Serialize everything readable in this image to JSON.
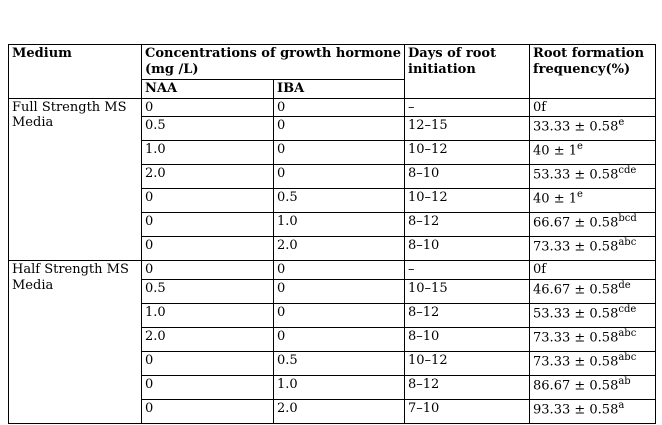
{
  "table": {
    "header": {
      "medium": "Medium",
      "concentrations": "Concentrations of growth hormone (mg /L)",
      "naa": "NAA",
      "iba": "IBA",
      "days": "Days of root initiation",
      "frequency": "Root formation frequency(%)"
    },
    "sections": [
      {
        "medium": "Full Strength MS Media",
        "rows": [
          {
            "naa": "0",
            "iba": "0",
            "days": "–",
            "freq": "0f",
            "sup": ""
          },
          {
            "naa": "0.5",
            "iba": "0",
            "days": "12–15",
            "freq": "33.33 ± 0.58",
            "sup": "e"
          },
          {
            "naa": "1.0",
            "iba": "0",
            "days": "10–12",
            "freq": "40 ± 1",
            "sup": "e"
          },
          {
            "naa": "2.0",
            "iba": "0",
            "days": "8–10",
            "freq": "53.33 ± 0.58",
            "sup": "cde"
          },
          {
            "naa": "0",
            "iba": "0.5",
            "days": "10–12",
            "freq": "40 ± 1",
            "sup": "e"
          },
          {
            "naa": "0",
            "iba": "1.0",
            "days": "8–12",
            "freq": "66.67 ± 0.58",
            "sup": "bcd"
          },
          {
            "naa": "0",
            "iba": "2.0",
            "days": "8–10",
            "freq": "73.33 ± 0.58",
            "sup": "abc"
          }
        ]
      },
      {
        "medium": "Half Strength MS Media",
        "rows": [
          {
            "naa": "0",
            "iba": "0",
            "days": "–",
            "freq": "0f",
            "sup": ""
          },
          {
            "naa": "0.5",
            "iba": "0",
            "days": "10–15",
            "freq": "46.67 ± 0.58",
            "sup": "de"
          },
          {
            "naa": "1.0",
            "iba": "0",
            "days": "8–12",
            "freq": "53.33 ± 0.58",
            "sup": "cde"
          },
          {
            "naa": "2.0",
            "iba": "0",
            "days": "8–10",
            "freq": "73.33 ± 0.58",
            "sup": "abc"
          },
          {
            "naa": "0",
            "iba": "0.5",
            "days": "10–12",
            "freq": "73.33 ± 0.58",
            "sup": "abc"
          },
          {
            "naa": "0",
            "iba": "1.0",
            "days": "8–12",
            "freq": "86.67 ± 0.58",
            "sup": "ab"
          },
          {
            "naa": "0",
            "iba": "2.0",
            "days": "7–10",
            "freq": "93.33 ± 0.58",
            "sup": "a"
          }
        ]
      }
    ]
  }
}
